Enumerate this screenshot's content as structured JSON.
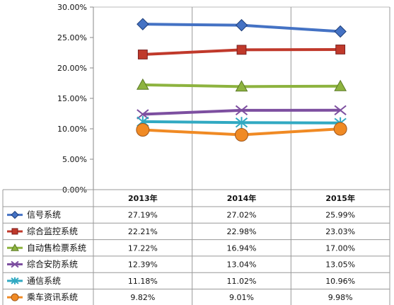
{
  "chart_data": {
    "type": "line",
    "title": "",
    "xlabel": "",
    "ylabel": "",
    "categories": [
      "2013年",
      "2014年",
      "2015年"
    ],
    "ylim": [
      0,
      30
    ],
    "y_tick_labels": [
      "30.00%",
      "25.00%",
      "20.00%",
      "15.00%",
      "10.00%",
      "5.00%",
      "0.00%"
    ],
    "grid": "vertical",
    "legend": "data table below chart",
    "series": [
      {
        "name": "信号系统",
        "values": [
          27.19,
          27.02,
          25.99
        ],
        "labels": [
          "27.19%",
          "27.02%",
          "25.99%"
        ],
        "color": "#4472C4",
        "marker": "diamond"
      },
      {
        "name": "综合监控系统",
        "values": [
          22.21,
          22.98,
          23.03
        ],
        "labels": [
          "22.21%",
          "22.98%",
          "23.03%"
        ],
        "color": "#C0392B",
        "marker": "square"
      },
      {
        "name": "自动售检票系统",
        "values": [
          17.22,
          16.94,
          17.0
        ],
        "labels": [
          "17.22%",
          "16.94%",
          "17.00%"
        ],
        "color": "#8DB33F",
        "marker": "triangle"
      },
      {
        "name": "综合安防系统",
        "values": [
          12.39,
          13.04,
          13.05
        ],
        "labels": [
          "12.39%",
          "13.04%",
          "13.05%"
        ],
        "color": "#7D4FA0",
        "marker": "x"
      },
      {
        "name": "通信系统",
        "values": [
          11.18,
          11.02,
          10.96
        ],
        "labels": [
          "11.18%",
          "11.02%",
          "10.96%"
        ],
        "color": "#31A9C2",
        "marker": "star"
      },
      {
        "name": "乘车资讯系统",
        "values": [
          9.82,
          9.01,
          9.98
        ],
        "labels": [
          "9.82%",
          "9.01%",
          "9.98%"
        ],
        "color": "#F08A24",
        "marker": "circle"
      }
    ]
  }
}
